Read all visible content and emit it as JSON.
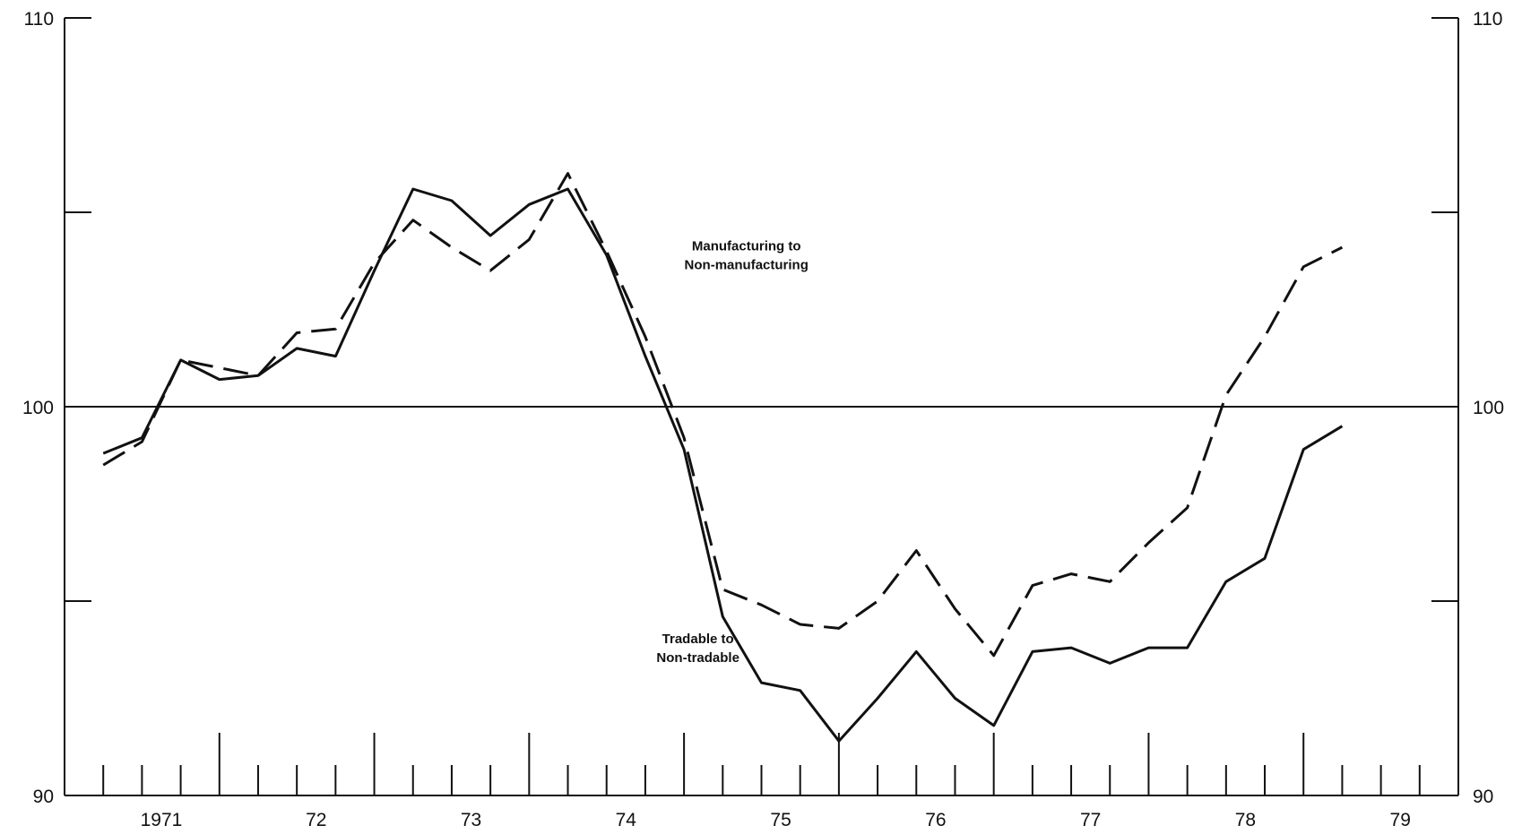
{
  "chart_data": {
    "type": "line",
    "title": "",
    "xlabel": "",
    "ylabel": "",
    "ylim": [
      90,
      110
    ],
    "y_ticks": [
      90,
      95,
      100,
      105,
      110
    ],
    "y_tick_labels_left": [
      "90",
      "",
      "100",
      "",
      "110"
    ],
    "y_tick_labels_right": [
      "90",
      "",
      "100",
      "",
      "110"
    ],
    "reference_line": 100,
    "x_range": [
      1970.75,
      1979.75
    ],
    "year_labels": [
      {
        "year": 1971,
        "label": "1971"
      },
      {
        "year": 1972,
        "label": "72"
      },
      {
        "year": 1973,
        "label": "73"
      },
      {
        "year": 1974,
        "label": "74"
      },
      {
        "year": 1975,
        "label": "75"
      },
      {
        "year": 1976,
        "label": "76"
      },
      {
        "year": 1977,
        "label": "77"
      },
      {
        "year": 1978,
        "label": "78"
      },
      {
        "year": 1979,
        "label": "79"
      }
    ],
    "x": [
      "1971Q1",
      "1971Q2",
      "1971Q3",
      "1971Q4",
      "1972Q1",
      "1972Q2",
      "1972Q3",
      "1972Q4",
      "1973Q1",
      "1973Q2",
      "1973Q3",
      "1973Q4",
      "1974Q1",
      "1974Q2",
      "1974Q3",
      "1974Q4",
      "1975Q1",
      "1975Q2",
      "1975Q3",
      "1975Q4",
      "1976Q1",
      "1976Q2",
      "1976Q3",
      "1976Q4",
      "1977Q1",
      "1977Q2",
      "1977Q3",
      "1977Q4",
      "1978Q1",
      "1978Q2",
      "1978Q3",
      "1978Q4",
      "1979Q1"
    ],
    "series": [
      {
        "name": "Tradable to Non-tradable",
        "style": "solid",
        "color": "#111111",
        "values": [
          98.8,
          99.2,
          101.2,
          100.7,
          100.8,
          101.5,
          101.3,
          103.5,
          105.6,
          105.3,
          104.4,
          105.2,
          105.6,
          103.9,
          101.3,
          98.9,
          94.6,
          92.9,
          92.7,
          91.4,
          92.5,
          93.7,
          92.5,
          91.8,
          93.7,
          93.8,
          93.4,
          93.8,
          93.8,
          95.5,
          96.1,
          98.9,
          99.5
        ]
      },
      {
        "name": "Manufacturing to Non-manufacturing",
        "style": "dashed",
        "color": "#111111",
        "values": [
          98.5,
          99.1,
          101.2,
          101.0,
          100.8,
          101.9,
          102.0,
          103.7,
          104.8,
          104.1,
          103.5,
          104.3,
          106.0,
          104.0,
          101.8,
          99.2,
          95.3,
          94.9,
          94.4,
          94.3,
          95.0,
          96.3,
          94.8,
          93.6,
          95.4,
          95.7,
          95.5,
          96.5,
          97.4,
          100.3,
          101.8,
          103.6,
          104.1
        ]
      }
    ],
    "annotations": [
      {
        "series": "Manufacturing to Non-manufacturing",
        "lines": [
          "Manufacturing to",
          "Non-manufacturing"
        ]
      },
      {
        "series": "Tradable to Non-tradable",
        "lines": [
          "Tradable to",
          "Non-tradable"
        ]
      }
    ],
    "grid": false,
    "legend": "none"
  }
}
